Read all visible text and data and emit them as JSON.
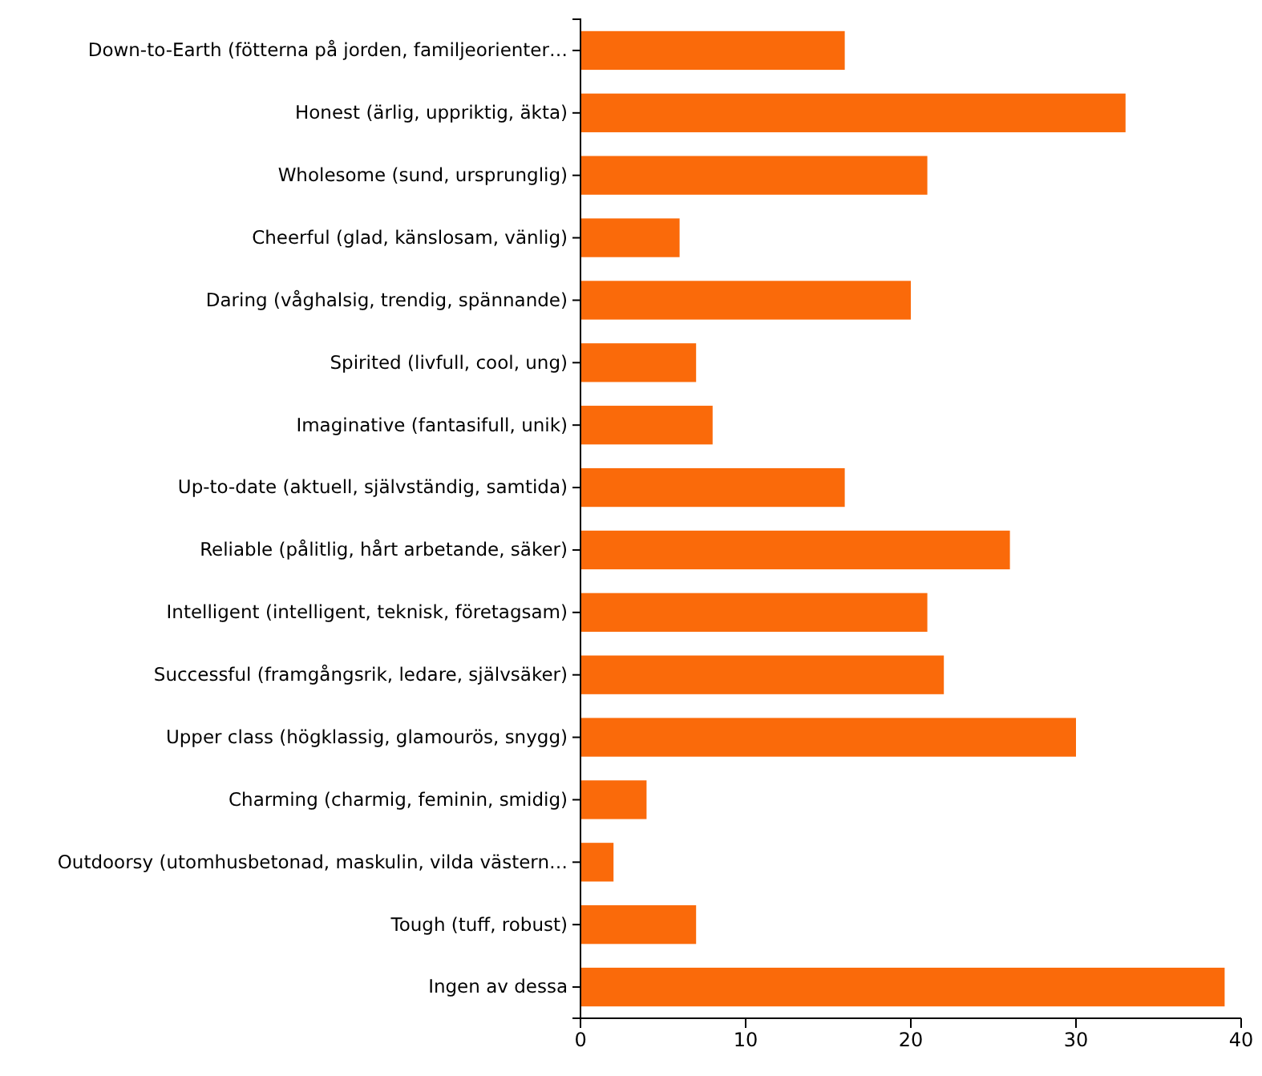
{
  "chart_data": {
    "type": "bar",
    "orientation": "horizontal",
    "categories": [
      "Down-to-Earth (fötterna på jorden, familjeorienter…",
      "Honest (ärlig, uppriktig, äkta)",
      "Wholesome (sund, ursprunglig)",
      "Cheerful (glad, känslosam, vänlig)",
      "Daring (våghalsig, trendig, spännande)",
      "Spirited (livfull, cool, ung)",
      "Imaginative (fantasifull, unik)",
      "Up-to-date (aktuell, självständig, samtida)",
      "Reliable (pålitlig, hårt arbetande, säker)",
      "Intelligent (intelligent, teknisk, företagsam)",
      "Successful (framgångsrik, ledare, självsäker)",
      "Upper class (högklassig, glamourös, snygg)",
      "Charming (charmig, feminin, smidig)",
      "Outdoorsy (utomhusbetonad, maskulin, vilda västern…",
      "Tough (tuff, robust)",
      "Ingen av dessa"
    ],
    "values": [
      16,
      33,
      21,
      6,
      20,
      7,
      8,
      16,
      26,
      21,
      22,
      30,
      4,
      2,
      7,
      39
    ],
    "color": "#fa6a0a",
    "xlim": [
      0,
      40
    ],
    "xticks": [
      0,
      10,
      20,
      30,
      40
    ],
    "grid": false
  }
}
